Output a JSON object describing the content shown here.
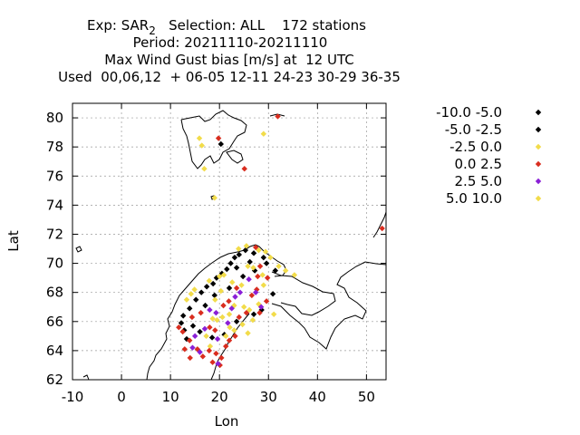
{
  "chart_data": {
    "type": "scatter",
    "title_lines": [
      "Exp: SAR",
      "Period: 20211110-20211110",
      "Max Wind Gust bias [m/s] at  12 UTC",
      "Used  00,06,12  + 06-05 12-11 24-23 30-29 36-35"
    ],
    "title_subscript": "2",
    "title_tail": "   Selection: ALL    172 stations",
    "xlabel": "Lon",
    "ylabel": "Lat",
    "xlim": [
      -10,
      54
    ],
    "ylim": [
      62,
      81
    ],
    "xticks": [
      -10,
      0,
      10,
      20,
      30,
      40,
      50
    ],
    "yticks": [
      62,
      64,
      66,
      68,
      70,
      72,
      74,
      76,
      78,
      80
    ],
    "grid": true,
    "legend_position": "right",
    "series": [
      {
        "name": "-10.0 -5.0",
        "color": "#000000",
        "points": [
          [
            21.5,
            69.6
          ],
          [
            22.3,
            70.0
          ],
          [
            23.1,
            70.4
          ],
          [
            24.0,
            70.6
          ],
          [
            25.3,
            70.9
          ],
          [
            27.0,
            70.7
          ],
          [
            26.2,
            70.1
          ],
          [
            23.5,
            69.7
          ],
          [
            20.5,
            69.3
          ],
          [
            19.4,
            69.0
          ],
          [
            18.7,
            68.6
          ],
          [
            17.4,
            68.4
          ],
          [
            16.3,
            68.0
          ],
          [
            15.2,
            67.5
          ],
          [
            13.9,
            66.9
          ],
          [
            12.6,
            66.4
          ],
          [
            12.2,
            65.9
          ],
          [
            12.8,
            65.4
          ],
          [
            14.6,
            65.7
          ],
          [
            16.0,
            65.3
          ],
          [
            18.5,
            64.9
          ],
          [
            21.0,
            65.1
          ],
          [
            23.5,
            66.0
          ],
          [
            27.0,
            66.5
          ],
          [
            28.6,
            66.8
          ],
          [
            30.9,
            67.9
          ],
          [
            31.4,
            69.5
          ],
          [
            29.6,
            70.0
          ],
          [
            24.8,
            69.1
          ],
          [
            22.0,
            68.3
          ],
          [
            19.0,
            67.8
          ],
          [
            17.1,
            67.1
          ],
          [
            13.3,
            64.8
          ],
          [
            20.3,
            78.2
          ],
          [
            29.0,
            70.4
          ],
          [
            27.2,
            69.5
          ]
        ]
      },
      {
        "name": "-5.0 -2.5",
        "color": "#000000",
        "points": []
      },
      {
        "name": "-2.5 0.0",
        "color": "#f2dc4a",
        "points": [
          [
            15.9,
            78.6
          ],
          [
            16.4,
            78.1
          ],
          [
            16.9,
            76.5
          ],
          [
            19.0,
            74.5
          ],
          [
            29.0,
            78.9
          ],
          [
            23.9,
            71.0
          ],
          [
            25.5,
            71.2
          ],
          [
            28.0,
            70.9
          ],
          [
            29.4,
            70.8
          ],
          [
            30.4,
            70.4
          ],
          [
            32.1,
            69.8
          ],
          [
            33.5,
            69.5
          ],
          [
            35.3,
            69.2
          ],
          [
            25.8,
            69.8
          ],
          [
            26.9,
            69.7
          ],
          [
            28.8,
            69.2
          ],
          [
            20.0,
            69.1
          ],
          [
            17.9,
            68.8
          ],
          [
            14.9,
            68.2
          ],
          [
            14.2,
            67.9
          ],
          [
            13.3,
            67.5
          ],
          [
            20.9,
            69.2
          ],
          [
            22.6,
            68.7
          ],
          [
            24.5,
            68.5
          ],
          [
            20.3,
            68.1
          ],
          [
            19.1,
            67.5
          ],
          [
            23.0,
            67.1
          ],
          [
            25.0,
            67.0
          ],
          [
            26.1,
            66.8
          ],
          [
            22.0,
            66.5
          ],
          [
            20.6,
            66.3
          ],
          [
            18.6,
            66.2
          ],
          [
            19.5,
            66.1
          ],
          [
            22.1,
            65.6
          ],
          [
            23.0,
            65.4
          ],
          [
            24.7,
            65.8
          ],
          [
            25.8,
            65.2
          ],
          [
            17.3,
            65.0
          ],
          [
            18.1,
            64.3
          ],
          [
            21.3,
            65.0
          ],
          [
            26.8,
            66.1
          ],
          [
            28.0,
            67.2
          ],
          [
            29.0,
            68.5
          ],
          [
            31.1,
            66.5
          ]
        ]
      },
      {
        "name": "0.0 2.5",
        "color": "#d92d1f",
        "points": [
          [
            31.9,
            80.1
          ],
          [
            25.1,
            76.5
          ],
          [
            19.8,
            78.6
          ],
          [
            27.4,
            71.1
          ],
          [
            28.3,
            69.8
          ],
          [
            29.8,
            69.0
          ],
          [
            27.6,
            68.2
          ],
          [
            29.6,
            67.4
          ],
          [
            28.2,
            66.6
          ],
          [
            26.6,
            67.8
          ],
          [
            23.5,
            68.3
          ],
          [
            20.8,
            67.1
          ],
          [
            21.9,
            67.4
          ],
          [
            24.0,
            66.3
          ],
          [
            23.2,
            65.0
          ],
          [
            19.1,
            65.4
          ],
          [
            18.0,
            65.6
          ],
          [
            16.2,
            66.6
          ],
          [
            14.4,
            66.3
          ],
          [
            12.5,
            65.3
          ],
          [
            13.9,
            64.7
          ],
          [
            15.5,
            64.1
          ],
          [
            17.9,
            64.0
          ],
          [
            19.3,
            63.8
          ],
          [
            20.4,
            63.5
          ],
          [
            21.3,
            64.3
          ],
          [
            16.6,
            63.6
          ],
          [
            18.6,
            63.2
          ],
          [
            20.1,
            63.0
          ],
          [
            22.0,
            64.7
          ],
          [
            11.7,
            65.6
          ],
          [
            12.9,
            64.1
          ],
          [
            14.0,
            63.5
          ],
          [
            25.5,
            66.6
          ],
          [
            27.8,
            69.1
          ],
          [
            53.2,
            72.4
          ]
        ]
      },
      {
        "name": "2.5 5.0",
        "color": "#8a1fd6",
        "points": [
          [
            26.0,
            68.9
          ],
          [
            27.4,
            68.0
          ],
          [
            28.5,
            67.0
          ],
          [
            24.2,
            68.0
          ],
          [
            23.2,
            67.7
          ],
          [
            22.5,
            66.9
          ],
          [
            19.3,
            66.6
          ],
          [
            18.0,
            66.8
          ],
          [
            17.0,
            65.5
          ],
          [
            19.6,
            64.8
          ],
          [
            15.0,
            65.0
          ],
          [
            14.5,
            64.2
          ],
          [
            16.0,
            63.9
          ],
          [
            19.7,
            63.1
          ],
          [
            21.7,
            65.9
          ]
        ]
      },
      {
        "name": "5.0 10.0",
        "color": "#f2dc4a",
        "points": []
      }
    ]
  },
  "map": {
    "coastline_color": "#000000"
  }
}
